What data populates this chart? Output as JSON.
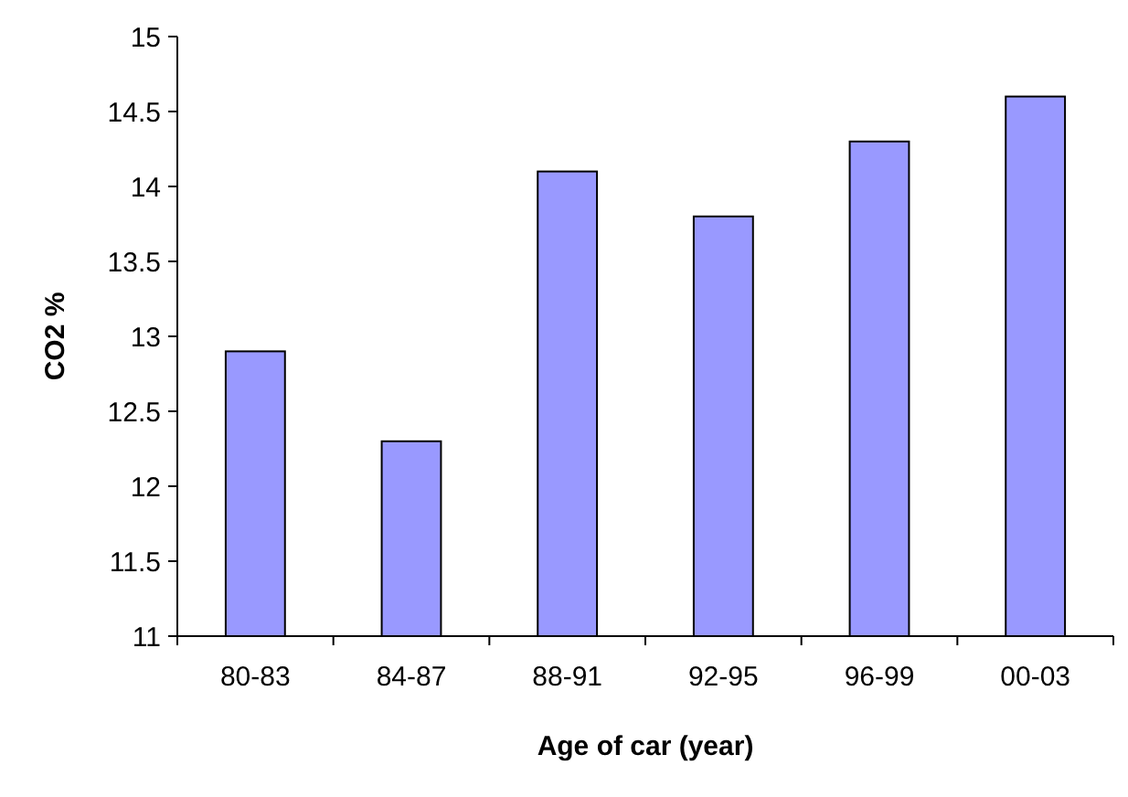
{
  "chart_data": {
    "type": "bar",
    "xlabel": "Age of car (year)",
    "ylabel": "CO2 %",
    "categories": [
      "80-83",
      "84-87",
      "88-91",
      "92-95",
      "96-99",
      "00-03"
    ],
    "values": [
      12.9,
      12.3,
      14.1,
      13.8,
      14.3,
      14.6
    ],
    "color": "#9999ff",
    "ylim": [
      11,
      15
    ],
    "yticks": [
      11,
      11.5,
      12,
      12.5,
      13,
      13.5,
      14,
      14.5,
      15
    ],
    "grid": false
  }
}
